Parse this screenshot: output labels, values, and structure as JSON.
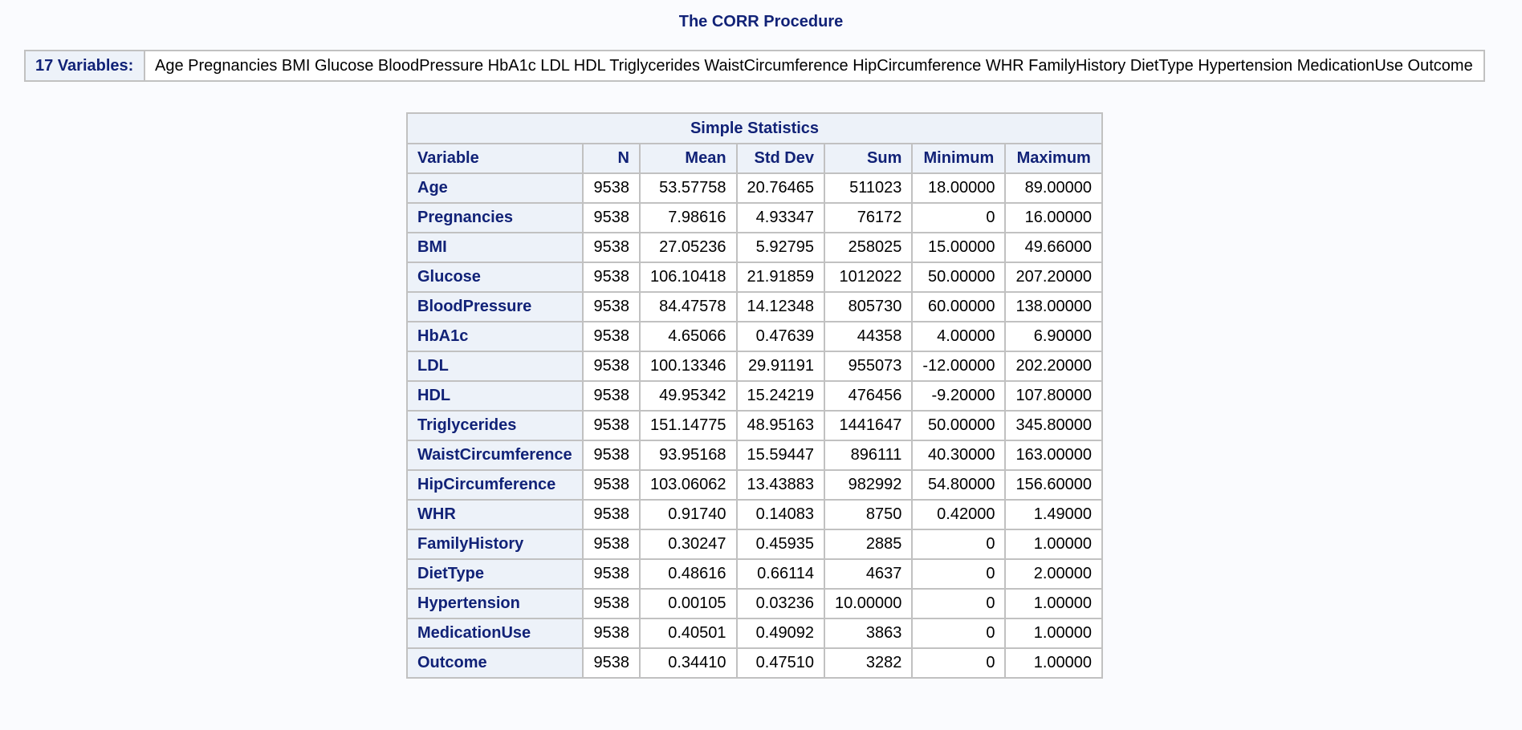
{
  "procedure_title": "The CORR Procedure",
  "variables_info": {
    "label": "17 Variables:",
    "list": "Age Pregnancies BMI Glucose BloodPressure HbA1c LDL HDL Triglycerides WaistCircumference HipCircumference WHR FamilyHistory DietType Hypertension MedicationUse Outcome"
  },
  "simple_statistics": {
    "caption": "Simple Statistics",
    "headers": {
      "variable": "Variable",
      "n": "N",
      "mean": "Mean",
      "std_dev": "Std Dev",
      "sum": "Sum",
      "minimum": "Minimum",
      "maximum": "Maximum"
    },
    "rows": [
      {
        "variable": "Age",
        "n": "9538",
        "mean": "53.57758",
        "std_dev": "20.76465",
        "sum": "511023",
        "minimum": "18.00000",
        "maximum": "89.00000"
      },
      {
        "variable": "Pregnancies",
        "n": "9538",
        "mean": "7.98616",
        "std_dev": "4.93347",
        "sum": "76172",
        "minimum": "0",
        "maximum": "16.00000"
      },
      {
        "variable": "BMI",
        "n": "9538",
        "mean": "27.05236",
        "std_dev": "5.92795",
        "sum": "258025",
        "minimum": "15.00000",
        "maximum": "49.66000"
      },
      {
        "variable": "Glucose",
        "n": "9538",
        "mean": "106.10418",
        "std_dev": "21.91859",
        "sum": "1012022",
        "minimum": "50.00000",
        "maximum": "207.20000"
      },
      {
        "variable": "BloodPressure",
        "n": "9538",
        "mean": "84.47578",
        "std_dev": "14.12348",
        "sum": "805730",
        "minimum": "60.00000",
        "maximum": "138.00000"
      },
      {
        "variable": "HbA1c",
        "n": "9538",
        "mean": "4.65066",
        "std_dev": "0.47639",
        "sum": "44358",
        "minimum": "4.00000",
        "maximum": "6.90000"
      },
      {
        "variable": "LDL",
        "n": "9538",
        "mean": "100.13346",
        "std_dev": "29.91191",
        "sum": "955073",
        "minimum": "-12.00000",
        "maximum": "202.20000"
      },
      {
        "variable": "HDL",
        "n": "9538",
        "mean": "49.95342",
        "std_dev": "15.24219",
        "sum": "476456",
        "minimum": "-9.20000",
        "maximum": "107.80000"
      },
      {
        "variable": "Triglycerides",
        "n": "9538",
        "mean": "151.14775",
        "std_dev": "48.95163",
        "sum": "1441647",
        "minimum": "50.00000",
        "maximum": "345.80000"
      },
      {
        "variable": "WaistCircumference",
        "n": "9538",
        "mean": "93.95168",
        "std_dev": "15.59447",
        "sum": "896111",
        "minimum": "40.30000",
        "maximum": "163.00000"
      },
      {
        "variable": "HipCircumference",
        "n": "9538",
        "mean": "103.06062",
        "std_dev": "13.43883",
        "sum": "982992",
        "minimum": "54.80000",
        "maximum": "156.60000"
      },
      {
        "variable": "WHR",
        "n": "9538",
        "mean": "0.91740",
        "std_dev": "0.14083",
        "sum": "8750",
        "minimum": "0.42000",
        "maximum": "1.49000"
      },
      {
        "variable": "FamilyHistory",
        "n": "9538",
        "mean": "0.30247",
        "std_dev": "0.45935",
        "sum": "2885",
        "minimum": "0",
        "maximum": "1.00000"
      },
      {
        "variable": "DietType",
        "n": "9538",
        "mean": "0.48616",
        "std_dev": "0.66114",
        "sum": "4637",
        "minimum": "0",
        "maximum": "2.00000"
      },
      {
        "variable": "Hypertension",
        "n": "9538",
        "mean": "0.00105",
        "std_dev": "0.03236",
        "sum": "10.00000",
        "minimum": "0",
        "maximum": "1.00000"
      },
      {
        "variable": "MedicationUse",
        "n": "9538",
        "mean": "0.40501",
        "std_dev": "0.49092",
        "sum": "3863",
        "minimum": "0",
        "maximum": "1.00000"
      },
      {
        "variable": "Outcome",
        "n": "9538",
        "mean": "0.34410",
        "std_dev": "0.47510",
        "sum": "3282",
        "minimum": "0",
        "maximum": "1.00000"
      }
    ]
  },
  "colors": {
    "background": "#fafbfe",
    "header_background": "#edf2f9",
    "header_text": "#112277",
    "cell_background": "#ffffff",
    "border": "#c1c1c1"
  }
}
